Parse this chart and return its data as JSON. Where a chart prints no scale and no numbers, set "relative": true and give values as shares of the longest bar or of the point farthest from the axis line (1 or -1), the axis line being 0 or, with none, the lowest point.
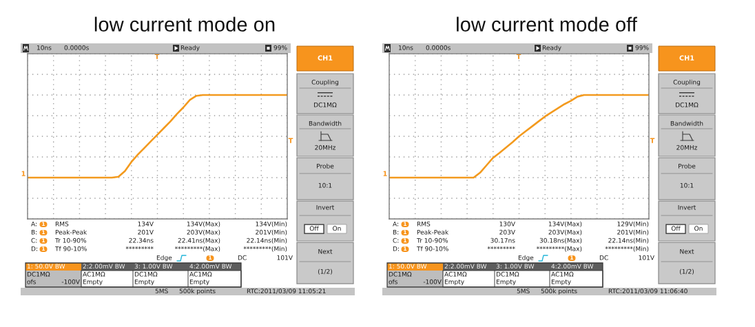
{
  "chart_data": [
    {
      "type": "line",
      "title": "low current mode on",
      "relative": true,
      "grid": true,
      "tick_labels": false,
      "categories": [
        null,
        null,
        null,
        null,
        null,
        null,
        null,
        null,
        null,
        null,
        null,
        null,
        null,
        null,
        null,
        null,
        null,
        null,
        null,
        null,
        null,
        null,
        null,
        null,
        null,
        null,
        null,
        null,
        null,
        null,
        null,
        null,
        null,
        null,
        null,
        null,
        null,
        null,
        null,
        null,
        null
      ],
      "color": "#f39a1e",
      "values": [
        0,
        0,
        0,
        0,
        0,
        0,
        0,
        0,
        0,
        0,
        0,
        0,
        0,
        0,
        0.01,
        0.08,
        0.19,
        0.28,
        0.36,
        0.44,
        0.52,
        0.6,
        0.68,
        0.77,
        0.85,
        0.94,
        0.99,
        1,
        1,
        1,
        1,
        1,
        1,
        1,
        1,
        1,
        1,
        1,
        1,
        1,
        1
      ],
      "annotations": [
        "10ns",
        "0.0000s",
        "Ready",
        "99%",
        "T",
        "1",
        "T",
        "CH1",
        "Coupling",
        "DC1MΩ",
        "Bandwidth",
        "20MHz",
        "Probe",
        "10:1",
        "Invert",
        "Off",
        "On",
        "Next",
        "(1/2)",
        "A:",
        "1",
        "RMS",
        "134V",
        "134V(Max)",
        "134V(Min)",
        "B:",
        "1",
        "Peak-Peak",
        "201V",
        "203V(Max)",
        "201V(Min)",
        "C:",
        "1",
        "Tr 10-90%",
        "22.34ns",
        "22.41ns(Max)",
        "22.14ns(Min)",
        "D:",
        "1",
        "Tf 90-10%",
        "*********",
        "*********(Max)",
        "*********(Min)",
        "Edge",
        "1",
        "DC",
        "101V",
        "1: 50.0V BW",
        "2:2.00mV BW",
        "3: 1.00V BW",
        "4:2.00mV BW",
        "DC1MΩ",
        "AC1MΩ",
        "DC1MΩ",
        "AC1MΩ",
        "ofs",
        "-100V",
        "Empty",
        "Empty",
        "Empty",
        "5MS",
        "500k points",
        "RTC:2011/03/09 11:05:21"
      ]
    },
    {
      "type": "line",
      "title": "low current mode off",
      "relative": true,
      "grid": true,
      "tick_labels": false,
      "categories": [
        null,
        null,
        null,
        null,
        null,
        null,
        null,
        null,
        null,
        null,
        null,
        null,
        null,
        null,
        null,
        null,
        null,
        null,
        null,
        null,
        null,
        null,
        null,
        null,
        null,
        null,
        null,
        null,
        null,
        null,
        null,
        null,
        null,
        null,
        null,
        null,
        null,
        null,
        null,
        null,
        null
      ],
      "color": "#f39a1e",
      "values": [
        0,
        0,
        0,
        0,
        0,
        0,
        0,
        0,
        0,
        0,
        0,
        0,
        0,
        0,
        0.06,
        0.15,
        0.24,
        0.3,
        0.365,
        0.43,
        0.5,
        0.56,
        0.62,
        0.68,
        0.74,
        0.79,
        0.84,
        0.89,
        0.93,
        0.98,
        1,
        1,
        1,
        1,
        1,
        1,
        1,
        1,
        1,
        1,
        1
      ],
      "annotations": [
        "10ns",
        "0.0000s",
        "Ready",
        "99%",
        "T",
        "1",
        "T",
        "CH1",
        "Coupling",
        "DC1MΩ",
        "Bandwidth",
        "20MHz",
        "Probe",
        "10:1",
        "Invert",
        "Off",
        "On",
        "Next",
        "(1/2)",
        "A:",
        "1",
        "RMS",
        "130V",
        "134V(Max)",
        "129V(Min)",
        "B:",
        "1",
        "Peak-Peak",
        "203V",
        "203V(Max)",
        "201V(Min)",
        "C:",
        "1",
        "Tr 10-90%",
        "30.17ns",
        "30.18ns(Max)",
        "22.14ns(Min)",
        "D:",
        "1",
        "Tf 90-10%",
        "*********",
        "*********(Max)",
        "*********(Min)",
        "Edge",
        "1",
        "DC",
        "101V",
        "1: 50.0V BW",
        "2:2.00mV BW",
        "3: 1.00V BW",
        "4:2.00mV BW",
        "DC1MΩ",
        "AC1MΩ",
        "DC1MΩ",
        "AC1MΩ",
        "ofs",
        "-100V",
        "Empty",
        "Empty",
        "Empty",
        "5MS",
        "500k points",
        "RTC:2011/03/09 11:06:40"
      ]
    }
  ]
}
